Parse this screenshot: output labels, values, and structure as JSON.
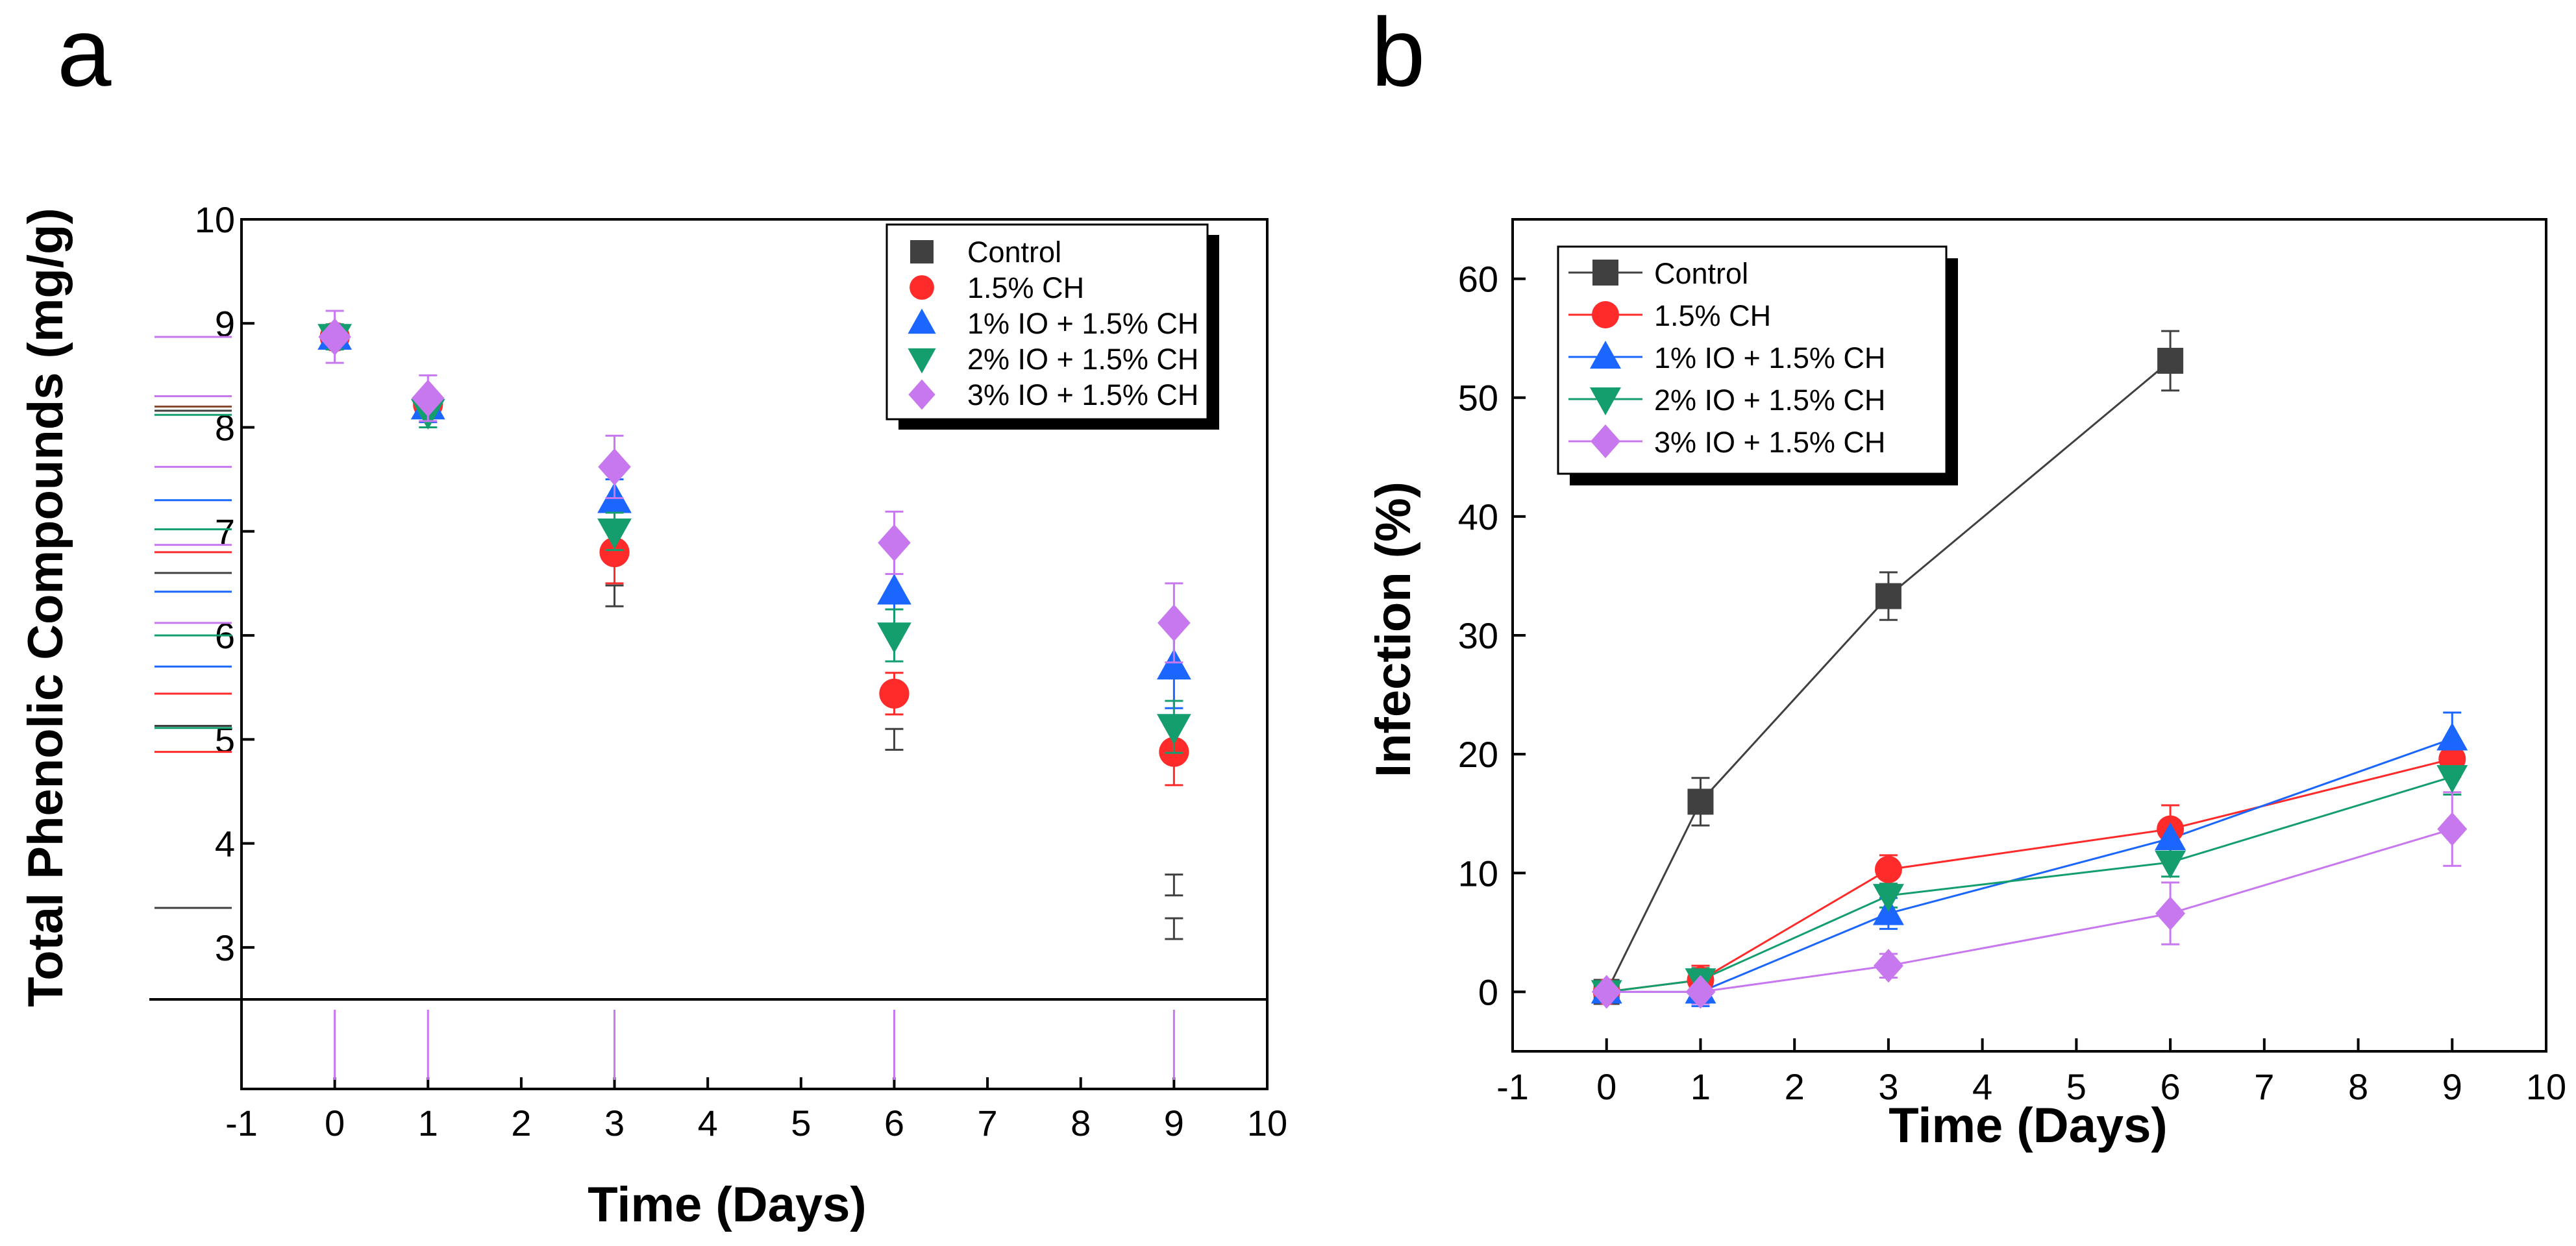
{
  "figure": {
    "panels": [
      {
        "label": "a"
      },
      {
        "label": "b"
      }
    ]
  },
  "chart_data": [
    {
      "panel": "a",
      "type": "scatter",
      "title": "",
      "xlabel": "Time (Days)",
      "ylabel": "Total Phenolic Compounds (mg/g)",
      "xlim": [
        -1,
        10
      ],
      "ylim": [
        2.5,
        10
      ],
      "xticks": [
        "-1",
        "0",
        "1",
        "2",
        "3",
        "4",
        "5",
        "6",
        "7",
        "8",
        "9",
        "10"
      ],
      "yticks": [
        "3",
        "4",
        "5",
        "6",
        "7",
        "8",
        "9",
        "10"
      ],
      "legend_position": "top-right",
      "x": [
        0,
        1,
        3,
        6,
        9
      ],
      "series": [
        {
          "name": "Control",
          "marker": "square",
          "color": "#404040",
          "values": [
            null,
            null,
            null,
            null,
            null
          ],
          "errors": [
            null,
            null,
            null,
            null,
            null
          ]
        },
        {
          "name": "1.5% CH",
          "marker": "circle",
          "color": "#ff2a2a",
          "values": [
            8.87,
            8.22,
            6.8,
            5.44,
            4.88
          ],
          "errors": [
            0.12,
            0.12,
            0.3,
            0.2,
            0.32
          ]
        },
        {
          "name": "1% IO + 1.5% CH",
          "marker": "triangle-up",
          "color": "#1a66ff",
          "values": [
            8.87,
            8.2,
            7.3,
            6.42,
            5.7
          ],
          "errors": [
            0.12,
            0.15,
            0.2,
            0.4,
            0.4
          ]
        },
        {
          "name": "2% IO + 1.5% CH",
          "marker": "triangle-down",
          "color": "#149e6e",
          "values": [
            8.87,
            8.15,
            7.0,
            6.0,
            5.12
          ],
          "errors": [
            0.12,
            0.15,
            0.18,
            0.25,
            0.25
          ]
        },
        {
          "name": "3% IO + 1.5% CH",
          "marker": "diamond",
          "color": "#c878ef",
          "values": [
            8.87,
            8.28,
            7.62,
            6.89,
            6.12
          ],
          "errors": [
            0.25,
            0.22,
            0.3,
            0.3,
            0.38
          ]
        }
      ],
      "bare_error_bars": [
        {
          "x": 3,
          "low": 6.28,
          "high": 6.48,
          "color": "#404040"
        },
        {
          "x": 6,
          "low": 4.9,
          "high": 5.1,
          "color": "#404040"
        },
        {
          "x": 9,
          "low": 3.08,
          "high": 3.28,
          "color": "#404040"
        },
        {
          "x": 9,
          "low": 3.5,
          "high": 3.7,
          "color": "#404040"
        }
      ],
      "rug_y": [
        {
          "y": 8.87,
          "color": "#c878ef"
        },
        {
          "y": 8.3,
          "color": "#c878ef"
        },
        {
          "y": 8.2,
          "color": "#8a4a30"
        },
        {
          "y": 8.16,
          "color": "#404040"
        },
        {
          "y": 8.12,
          "color": "#149e6e"
        },
        {
          "y": 7.62,
          "color": "#c878ef"
        },
        {
          "y": 7.3,
          "color": "#1a66ff"
        },
        {
          "y": 7.02,
          "color": "#149e6e"
        },
        {
          "y": 6.87,
          "color": "#c878ef"
        },
        {
          "y": 6.8,
          "color": "#ff2a2a"
        },
        {
          "y": 6.6,
          "color": "#404040"
        },
        {
          "y": 6.42,
          "color": "#1a66ff"
        },
        {
          "y": 6.12,
          "color": "#c878ef"
        },
        {
          "y": 6.0,
          "color": "#149e6e"
        },
        {
          "y": 5.7,
          "color": "#1a66ff"
        },
        {
          "y": 5.44,
          "color": "#ff2a2a"
        },
        {
          "y": 5.13,
          "color": "#404040"
        },
        {
          "y": 5.11,
          "color": "#149e6e"
        },
        {
          "y": 4.88,
          "color": "#ff2a2a"
        },
        {
          "y": 3.38,
          "color": "#404040"
        }
      ],
      "rug_x": [
        {
          "x": 0,
          "color": "#c878ef"
        },
        {
          "x": 1,
          "color": "#c878ef"
        },
        {
          "x": 3,
          "color": "#c878ef"
        },
        {
          "x": 6,
          "color": "#c878ef"
        },
        {
          "x": 9,
          "color": "#c878ef"
        }
      ]
    },
    {
      "panel": "b",
      "type": "line",
      "title": "",
      "xlabel": "Time (Days)",
      "ylabel": "Infection (%)",
      "xlim": [
        -1,
        10
      ],
      "ylim": [
        -5,
        65
      ],
      "xticks": [
        "-1",
        "0",
        "1",
        "2",
        "3",
        "4",
        "5",
        "6",
        "7",
        "8",
        "9",
        "10"
      ],
      "yticks": [
        "0",
        "10",
        "20",
        "30",
        "40",
        "50",
        "60"
      ],
      "legend_position": "top-left",
      "series": [
        {
          "name": "Control",
          "marker": "square",
          "color": "#404040",
          "x": [
            0,
            1,
            3,
            6
          ],
          "values": [
            0,
            16,
            33.3,
            53.1
          ],
          "errors": [
            0.8,
            2,
            2,
            2.5
          ]
        },
        {
          "name": "1.5% CH",
          "marker": "circle",
          "color": "#ff2a2a",
          "x": [
            0,
            1,
            3,
            6,
            9
          ],
          "values": [
            0,
            1,
            10.3,
            13.7,
            19.6
          ],
          "errors": [
            0.8,
            1.2,
            1.2,
            2,
            1.5
          ]
        },
        {
          "name": "1% IO + 1.5% CH",
          "marker": "triangle-up",
          "color": "#1a66ff",
          "x": [
            0,
            1,
            3,
            6,
            9
          ],
          "values": [
            0,
            0,
            6.6,
            12.9,
            21.3
          ],
          "errors": [
            0.8,
            1.2,
            1.3,
            1.5,
            2.2
          ]
        },
        {
          "name": "2% IO + 1.5% CH",
          "marker": "triangle-down",
          "color": "#149e6e",
          "x": [
            0,
            1,
            3,
            6,
            9
          ],
          "values": [
            0,
            1,
            8.1,
            10.9,
            18.1
          ],
          "errors": [
            0.8,
            1,
            1,
            1.2,
            1.5
          ]
        },
        {
          "name": "3% IO + 1.5% CH",
          "marker": "diamond",
          "color": "#c878ef",
          "x": [
            0,
            1,
            3,
            6,
            9
          ],
          "values": [
            0,
            0,
            2.2,
            6.6,
            13.7
          ],
          "errors": [
            0.8,
            1,
            1,
            2.6,
            3.1
          ]
        }
      ]
    }
  ]
}
